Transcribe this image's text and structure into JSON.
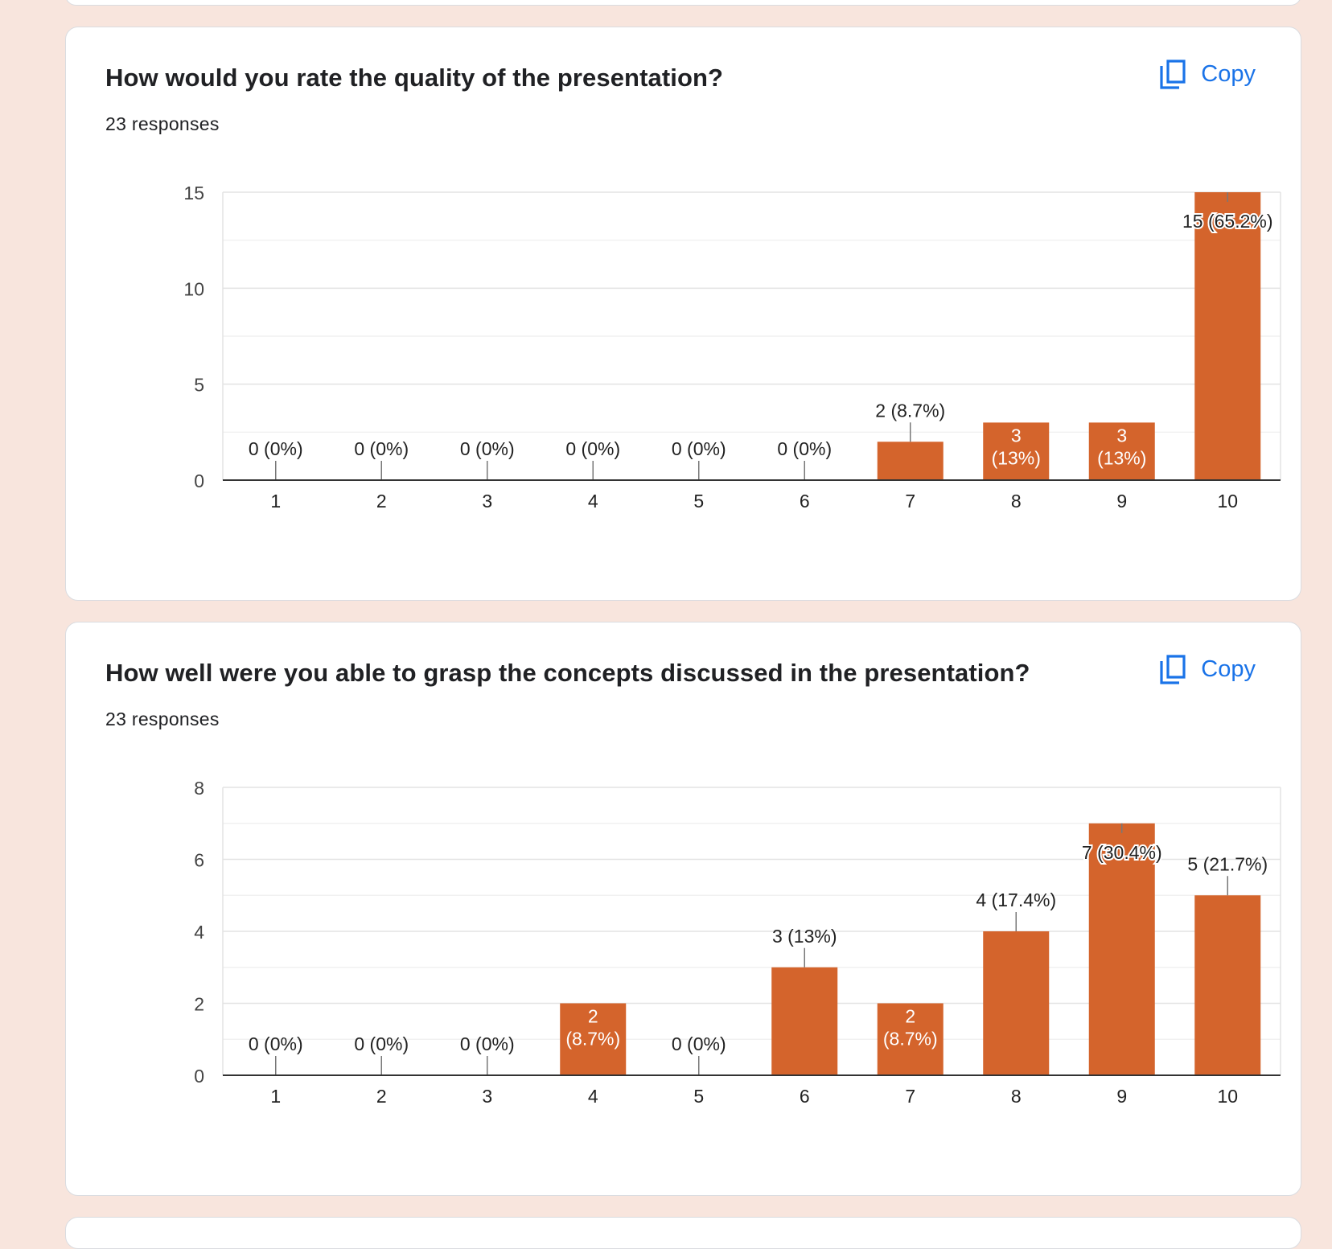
{
  "copy_label": "Copy",
  "colors": {
    "bar": "#d4642c",
    "accent": "#1a73e8",
    "background": "#f8e5dd"
  },
  "questions": [
    {
      "title": "How would you rate the quality of the presentation?",
      "responses": "23 responses",
      "chart_data": {
        "type": "bar",
        "categories": [
          "1",
          "2",
          "3",
          "4",
          "5",
          "6",
          "7",
          "8",
          "9",
          "10"
        ],
        "values": [
          0,
          0,
          0,
          0,
          0,
          0,
          2,
          3,
          3,
          15
        ],
        "labels": [
          "0 (0%)",
          "0 (0%)",
          "0 (0%)",
          "0 (0%)",
          "0 (0%)",
          "0 (0%)",
          "2 (8.7%)",
          "3 (13%)",
          "3 (13%)",
          "15 (65.2%)"
        ],
        "ylim": [
          0,
          15
        ],
        "yticks": [
          0,
          5,
          10,
          15
        ],
        "grid": true
      }
    },
    {
      "title": "How well were you able to grasp the concepts discussed in the presentation?",
      "responses": "23 responses",
      "chart_data": {
        "type": "bar",
        "categories": [
          "1",
          "2",
          "3",
          "4",
          "5",
          "6",
          "7",
          "8",
          "9",
          "10"
        ],
        "values": [
          0,
          0,
          0,
          2,
          0,
          3,
          2,
          4,
          7,
          5
        ],
        "labels": [
          "0 (0%)",
          "0 (0%)",
          "0 (0%)",
          "2 (8.7%)",
          "0 (0%)",
          "3 (13%)",
          "2 (8.7%)",
          "4 (17.4%)",
          "7 (30.4%)",
          "5 (21.7%)"
        ],
        "ylim": [
          0,
          8
        ],
        "yticks": [
          0,
          2,
          4,
          6,
          8
        ],
        "grid": true
      }
    }
  ]
}
